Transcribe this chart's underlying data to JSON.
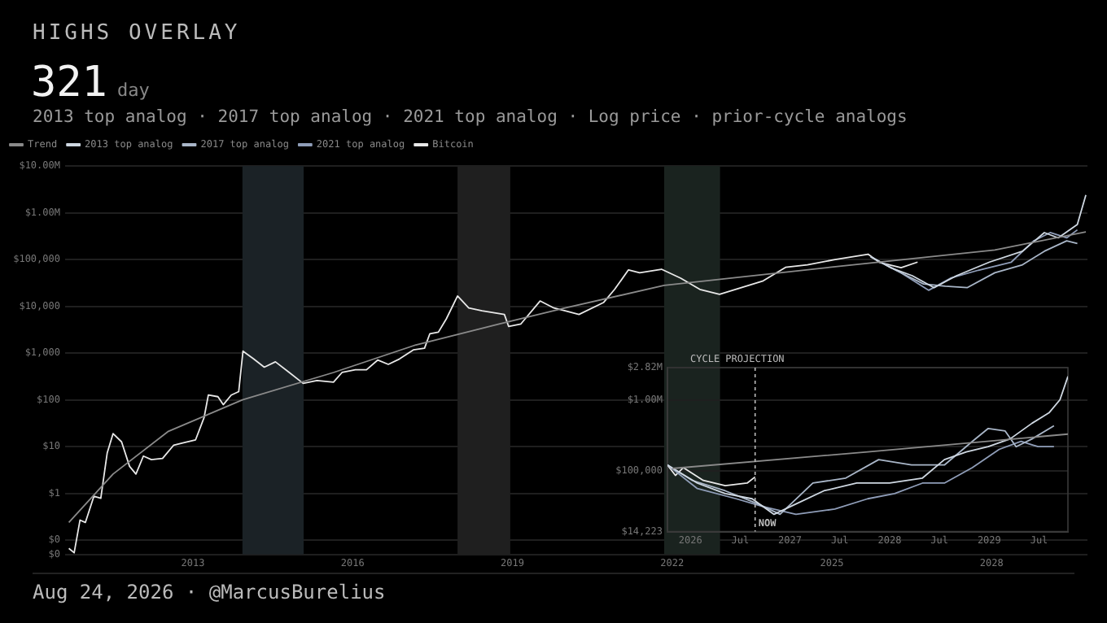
{
  "chart_data": [
    {
      "type": "line",
      "title": "HIGHS OVERLAY",
      "subtitle": "2013 top analog · 2017 top analog · 2021 top analog · Log price · prior-cycle analogs",
      "annotations": [
        "321",
        "day",
        "Aug 24, 2026 · @MarcusBurelius"
      ],
      "log": "y",
      "grid": "y",
      "legend": "top left",
      "xlim": [
        2010.6,
        2029.8
      ],
      "xticks": [
        2013,
        2016,
        2019,
        2022,
        2025,
        2028
      ],
      "ylim": [
        0.05,
        10000000
      ],
      "yticks": [
        {
          "value": 0.05,
          "label": "$0"
        },
        {
          "value": 0.1,
          "label": "$0"
        },
        {
          "value": 1,
          "label": "$1"
        },
        {
          "value": 10,
          "label": "$10"
        },
        {
          "value": 100,
          "label": "$100"
        },
        {
          "value": 1000,
          "label": "$1,000"
        },
        {
          "value": 10000,
          "label": "$10,000"
        },
        {
          "value": 100000,
          "label": "$100,000"
        },
        {
          "value": 1000000,
          "label": "$1.00M"
        },
        {
          "value": 10000000,
          "label": "$10.00M"
        }
      ],
      "bands": [
        {
          "axis": "x",
          "from": 2013.93,
          "to": 2015.08,
          "color": "#1b2226"
        },
        {
          "axis": "x",
          "from": 2017.97,
          "to": 2018.96,
          "color": "#1f1f1f"
        },
        {
          "axis": "x",
          "from": 2021.85,
          "to": 2022.9,
          "color": "#1a231f"
        }
      ],
      "series": [
        {
          "name": "Trend",
          "color": "#8a8a8a",
          "x": [
            2010.67,
            2011.5,
            2012.53,
            2013.93,
            2015.64,
            2017.19,
            2018.75,
            2019.99,
            2021.85,
            2024.96,
            2028.06,
            2029.77
          ],
          "values": [
            0.24,
            2.6,
            21,
            100,
            385,
            1500,
            4200,
            9200,
            28000,
            68000,
            160000,
            390000
          ]
        },
        {
          "name": "2013 top analog",
          "color": "#cfd8e2",
          "x": [
            2025.73,
            2026.1,
            2026.51,
            2026.92,
            2027.34,
            2027.96,
            2028.58,
            2028.99,
            2029.25,
            2029.61,
            2029.77
          ],
          "values": [
            114000,
            67000,
            45000,
            25000,
            45000,
            88000,
            150000,
            376000,
            290000,
            560000,
            2400000
          ]
        },
        {
          "name": "2017 top analog",
          "color": "#a9b6c8",
          "x": [
            2025.73,
            2026.2,
            2026.72,
            2027.13,
            2027.54,
            2028.06,
            2028.58,
            2028.99,
            2029.41,
            2029.61
          ],
          "values": [
            114000,
            59000,
            30000,
            27000,
            25000,
            52000,
            77000,
            150000,
            250000,
            220000
          ]
        },
        {
          "name": "2021 top analog",
          "color": "#8f9db8",
          "x": [
            2025.73,
            2026.3,
            2026.82,
            2027.23,
            2027.75,
            2028.37,
            2028.79,
            2029.1,
            2029.41,
            2029.61
          ],
          "values": [
            114000,
            52000,
            22000,
            40000,
            59000,
            88000,
            250000,
            376000,
            290000,
            430000
          ]
        },
        {
          "name": "Bitcoin",
          "color": "#e8e8e8",
          "x": [
            2010.67,
            2010.77,
            2010.88,
            2010.98,
            2011.14,
            2011.27,
            2011.39,
            2011.5,
            2011.66,
            2011.81,
            2011.93,
            2012.07,
            2012.22,
            2012.43,
            2012.64,
            2012.84,
            2013.05,
            2013.21,
            2013.29,
            2013.47,
            2013.57,
            2013.72,
            2013.86,
            2013.94,
            2014.14,
            2014.34,
            2014.55,
            2014.81,
            2015.07,
            2015.33,
            2015.64,
            2015.8,
            2016.05,
            2016.26,
            2016.47,
            2016.67,
            2016.88,
            2017.14,
            2017.35,
            2017.45,
            2017.61,
            2017.76,
            2017.97,
            2018.18,
            2018.43,
            2018.85,
            2018.93,
            2019.16,
            2019.52,
            2019.78,
            2019.99,
            2020.25,
            2020.71,
            2020.92,
            2021.18,
            2021.39,
            2021.8,
            2022.16,
            2022.52,
            2022.89,
            2023.3,
            2023.71,
            2024.13,
            2024.54,
            2025.06,
            2025.68,
            2025.89,
            2026.3,
            2026.61
          ],
          "values": [
            0.067,
            0.054,
            0.27,
            0.24,
            0.87,
            0.79,
            7.3,
            19,
            12.7,
            3.8,
            2.6,
            6.3,
            5.3,
            5.6,
            10.8,
            12.3,
            14,
            42,
            127,
            117,
            79,
            127,
            150,
            1100,
            750,
            500,
            650,
            385,
            225,
            260,
            240,
            385,
            440,
            440,
            710,
            575,
            750,
            1170,
            1270,
            2600,
            2800,
            5400,
            16600,
            9200,
            8000,
            6700,
            3700,
            4200,
            13000,
            9200,
            8000,
            6700,
            12000,
            23000,
            60000,
            52000,
            62000,
            40000,
            23000,
            18000,
            25000,
            35000,
            68000,
            77000,
            100000,
            130000,
            87000,
            67000,
            88000
          ]
        }
      ]
    },
    {
      "type": "line",
      "title": "CYCLE PROJECTION",
      "log": "y",
      "grid": "y",
      "xlim": [
        2025.77,
        2029.79
      ],
      "xticks": [
        2026,
        {
          "value": 2026.5,
          "label": "Jul"
        },
        2027,
        {
          "value": 2027.5,
          "label": "Jul"
        },
        2028,
        {
          "value": 2028.5,
          "label": "Jul"
        },
        2029,
        {
          "value": 2029.5,
          "label": "Jul"
        }
      ],
      "ylim": [
        14223,
        2820000
      ],
      "yticks": [
        {
          "value": 14223,
          "label": "$14,223"
        },
        {
          "value": 100000,
          "label": "$100,000"
        },
        {
          "value": 1000000,
          "label": "$1.00M"
        },
        {
          "value": 2820000,
          "label": "$2.82M"
        }
      ],
      "ref_lines": [
        {
          "axis": "x",
          "value": 2026.65,
          "label": "NOW",
          "color": "#bbbbbb",
          "line_style": "dashed"
        }
      ],
      "series": [
        {
          "color": "#8a8a8a",
          "x": [
            2025.82,
            2027.78,
            2029.79
          ],
          "values": [
            109000,
            186000,
            330000
          ]
        },
        {
          "color": "#cfd8e2",
          "x": [
            2025.77,
            2026.07,
            2026.35,
            2026.62,
            2026.84,
            2027.06,
            2027.34,
            2027.67,
            2028.0,
            2028.33,
            2028.55,
            2028.77,
            2028.99,
            2029.21,
            2029.43,
            2029.6,
            2029.71,
            2029.79
          ],
          "values": [
            122000,
            68000,
            48500,
            41000,
            24800,
            34700,
            53000,
            68000,
            68000,
            80000,
            145000,
            186000,
            220000,
            283000,
            469000,
            656000,
            1000000,
            2120000
          ]
        },
        {
          "color": "#a9b6c8",
          "x": [
            2025.77,
            2026.02,
            2026.35,
            2026.68,
            2026.9,
            2027.23,
            2027.56,
            2027.89,
            2028.22,
            2028.55,
            2028.83,
            2028.99,
            2029.16,
            2029.27,
            2029.43,
            2029.65
          ],
          "values": [
            122000,
            74000,
            53000,
            34700,
            24800,
            68000,
            80000,
            145000,
            122000,
            122000,
            261000,
            396000,
            365000,
            220000,
            283000,
            431000
          ]
        },
        {
          "color": "#8f9db8",
          "x": [
            2025.77,
            2026.07,
            2026.46,
            2026.73,
            2027.06,
            2027.45,
            2027.78,
            2028.05,
            2028.33,
            2028.55,
            2028.83,
            2029.1,
            2029.32,
            2029.49,
            2029.65
          ],
          "values": [
            122000,
            57000,
            41000,
            31900,
            24800,
            29400,
            41000,
            48500,
            68000,
            68000,
            112000,
            202000,
            261000,
            220000,
            220000
          ]
        },
        {
          "color": "#e8e8e8",
          "x": [
            2025.77,
            2025.85,
            2025.93,
            2026.13,
            2026.35,
            2026.57,
            2026.65
          ],
          "values": [
            122000,
            87000,
            112000,
            74000,
            62500,
            68000,
            83000
          ]
        }
      ]
    }
  ]
}
